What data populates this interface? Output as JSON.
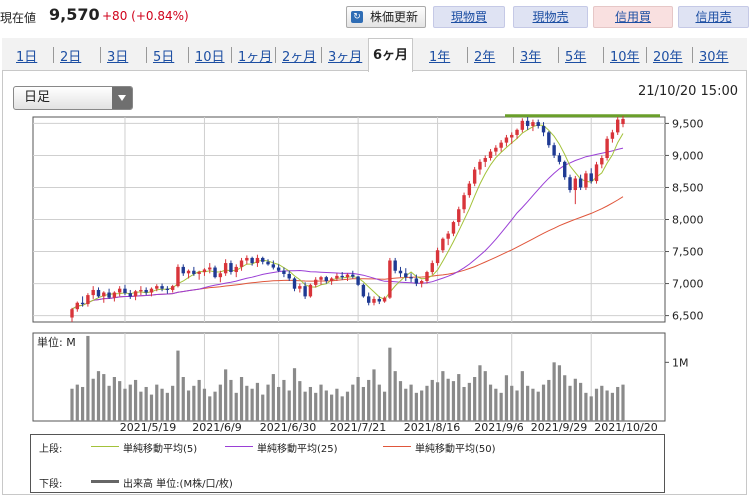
{
  "header": {
    "price_label": "現在値",
    "price_value": "9,570",
    "price_change": "+80 (+0.84%)",
    "refresh_label": "株価更新",
    "buy_spot_label": "現物買",
    "sell_spot_label": "現物売",
    "buy_margin_label": "信用買",
    "sell_margin_label": "信用売"
  },
  "period_tabs": [
    "1日",
    "2日",
    "3日",
    "5日",
    "10日",
    "1ヶ月",
    "2ヶ月",
    "3ヶ月",
    "6ヶ月",
    "1年",
    "2年",
    "3年",
    "5年",
    "10年",
    "20年",
    "30年"
  ],
  "active_tab": "6ヶ月",
  "candle_select": "日足",
  "datetime": "21/10/20 15:00",
  "legend": {
    "upper_label": "上段:",
    "ma5_label": "単純移動平均(5)",
    "ma25_label": "単純移動平均(25)",
    "ma50_label": "単純移動平均(50)",
    "lower_label": "下段:",
    "volume_label": "出来高 単位:(M株/口/枚)",
    "ma5_color": "#a3c23a",
    "ma25_color": "#9a3fd6",
    "ma50_color": "#e0563b"
  },
  "chart_data": {
    "type": "candlestick",
    "x_tick_labels": [
      "2021/5/19",
      "2021/6/9",
      "2021/6/30",
      "2021/7/21",
      "2021/8/16",
      "2021/9/6",
      "2021/9/29",
      "2021/10/20"
    ],
    "y_tick_labels": [
      "9,500",
      "9,000",
      "8,500",
      "8,000",
      "7,500",
      "7,000",
      "6,500"
    ],
    "ylim": [
      6400,
      9600
    ],
    "volume_unit_label": "単位: M",
    "volume_tick_label": "1M",
    "volume_ylim": [
      0,
      1.5
    ],
    "up_color": "#d8343a",
    "down_color": "#1f3a93",
    "volume_color": "#8a8a8a",
    "resistance_line": {
      "value": 9620,
      "color": "#6a9f2a"
    },
    "candles_ohlc": [
      [
        6470,
        6620,
        6400,
        6600
      ],
      [
        6600,
        6720,
        6560,
        6700
      ],
      [
        6700,
        6800,
        6640,
        6680
      ],
      [
        6680,
        6850,
        6640,
        6820
      ],
      [
        6820,
        6960,
        6760,
        6900
      ],
      [
        6900,
        6940,
        6780,
        6800
      ],
      [
        6800,
        6880,
        6700,
        6860
      ],
      [
        6860,
        6920,
        6760,
        6780
      ],
      [
        6780,
        6880,
        6720,
        6860
      ],
      [
        6860,
        6960,
        6800,
        6920
      ],
      [
        6920,
        6980,
        6820,
        6850
      ],
      [
        6850,
        6900,
        6760,
        6800
      ],
      [
        6800,
        6900,
        6740,
        6880
      ],
      [
        6880,
        6960,
        6820,
        6900
      ],
      [
        6900,
        6940,
        6820,
        6860
      ],
      [
        6860,
        6940,
        6800,
        6920
      ],
      [
        6920,
        6990,
        6880,
        6960
      ],
      [
        6960,
        7000,
        6880,
        6920
      ],
      [
        6920,
        6960,
        6840,
        6900
      ],
      [
        6900,
        6980,
        6860,
        6960
      ],
      [
        6960,
        7300,
        6940,
        7260
      ],
      [
        7260,
        7300,
        7120,
        7160
      ],
      [
        7160,
        7220,
        7080,
        7200
      ],
      [
        7200,
        7260,
        7120,
        7150
      ],
      [
        7150,
        7200,
        7060,
        7180
      ],
      [
        7180,
        7240,
        7120,
        7220
      ],
      [
        7220,
        7320,
        7160,
        7250
      ],
      [
        7250,
        7280,
        7080,
        7100
      ],
      [
        7100,
        7200,
        7020,
        7160
      ],
      [
        7160,
        7380,
        7120,
        7320
      ],
      [
        7320,
        7360,
        7140,
        7180
      ],
      [
        7180,
        7300,
        7100,
        7260
      ],
      [
        7260,
        7400,
        7200,
        7360
      ],
      [
        7360,
        7440,
        7300,
        7400
      ],
      [
        7400,
        7420,
        7280,
        7320
      ],
      [
        7320,
        7450,
        7260,
        7400
      ],
      [
        7400,
        7420,
        7300,
        7340
      ],
      [
        7340,
        7380,
        7280,
        7300
      ],
      [
        7300,
        7360,
        7220,
        7250
      ],
      [
        7250,
        7300,
        7180,
        7200
      ],
      [
        7200,
        7250,
        7100,
        7150
      ],
      [
        7150,
        7200,
        7040,
        7080
      ],
      [
        7080,
        7100,
        6880,
        6920
      ],
      [
        6920,
        7000,
        6860,
        6960
      ],
      [
        6960,
        7020,
        6760,
        6800
      ],
      [
        6800,
        7000,
        6780,
        6980
      ],
      [
        6980,
        7100,
        6940,
        7060
      ],
      [
        7060,
        7120,
        6980,
        7100
      ],
      [
        7100,
        7120,
        7000,
        7040
      ],
      [
        7040,
        7100,
        6980,
        7080
      ],
      [
        7080,
        7160,
        7040,
        7120
      ],
      [
        7120,
        7180,
        7060,
        7100
      ],
      [
        7100,
        7160,
        7040,
        7140
      ],
      [
        7140,
        7200,
        7080,
        7110
      ],
      [
        7110,
        7120,
        6960,
        6980
      ],
      [
        6980,
        7000,
        6780,
        6800
      ],
      [
        6800,
        6860,
        6660,
        6700
      ],
      [
        6700,
        6800,
        6660,
        6760
      ],
      [
        6760,
        6800,
        6680,
        6720
      ],
      [
        6720,
        6800,
        6700,
        6780
      ],
      [
        6780,
        7400,
        6760,
        7360
      ],
      [
        7360,
        7400,
        7160,
        7200
      ],
      [
        7200,
        7260,
        7100,
        7160
      ],
      [
        7160,
        7240,
        7040,
        7100
      ],
      [
        7100,
        7160,
        7020,
        7080
      ],
      [
        7080,
        7140,
        6960,
        7000
      ],
      [
        7000,
        7060,
        6940,
        7040
      ],
      [
        7040,
        7200,
        7000,
        7180
      ],
      [
        7180,
        7360,
        7140,
        7320
      ],
      [
        7320,
        7560,
        7280,
        7520
      ],
      [
        7520,
        7720,
        7480,
        7700
      ],
      [
        7700,
        7820,
        7600,
        7780
      ],
      [
        7780,
        7980,
        7740,
        7960
      ],
      [
        7960,
        8200,
        7900,
        8160
      ],
      [
        8160,
        8420,
        8100,
        8380
      ],
      [
        8380,
        8600,
        8340,
        8560
      ],
      [
        8560,
        8820,
        8520,
        8780
      ],
      [
        8780,
        8940,
        8700,
        8900
      ],
      [
        8900,
        9000,
        8820,
        8960
      ],
      [
        8960,
        9100,
        8920,
        9060
      ],
      [
        9060,
        9160,
        9000,
        9120
      ],
      [
        9120,
        9240,
        9060,
        9200
      ],
      [
        9200,
        9320,
        9140,
        9280
      ],
      [
        9280,
        9360,
        9180,
        9320
      ],
      [
        9320,
        9420,
        9260,
        9400
      ],
      [
        9400,
        9580,
        9360,
        9540
      ],
      [
        9540,
        9600,
        9400,
        9460
      ],
      [
        9460,
        9560,
        9380,
        9520
      ],
      [
        9520,
        9560,
        9420,
        9460
      ],
      [
        9460,
        9520,
        9300,
        9360
      ],
      [
        9360,
        9380,
        9120,
        9160
      ],
      [
        9160,
        9200,
        8960,
        9000
      ],
      [
        9000,
        9040,
        8860,
        8900
      ],
      [
        8900,
        8920,
        8620,
        8660
      ],
      [
        8660,
        8700,
        8420,
        8460
      ],
      [
        8460,
        8680,
        8240,
        8640
      ],
      [
        8640,
        8700,
        8460,
        8500
      ],
      [
        8500,
        8760,
        8460,
        8720
      ],
      [
        8720,
        8800,
        8560,
        8600
      ],
      [
        8600,
        8900,
        8560,
        8860
      ],
      [
        8860,
        9000,
        8800,
        8960
      ],
      [
        8960,
        9300,
        8920,
        9260
      ],
      [
        9260,
        9400,
        9200,
        9360
      ],
      [
        9360,
        9600,
        9320,
        9560
      ],
      [
        9490,
        9620,
        9440,
        9570
      ]
    ],
    "volume_values": [
      0.55,
      0.62,
      0.58,
      1.45,
      0.72,
      0.85,
      0.8,
      0.6,
      0.75,
      0.68,
      0.55,
      0.62,
      0.7,
      0.5,
      0.58,
      0.45,
      0.62,
      0.55,
      0.48,
      0.6,
      1.2,
      0.75,
      0.52,
      0.6,
      0.7,
      0.55,
      0.42,
      0.5,
      0.62,
      0.88,
      0.7,
      0.48,
      0.75,
      0.6,
      0.55,
      0.65,
      0.45,
      0.62,
      0.8,
      0.58,
      0.7,
      0.52,
      0.9,
      0.68,
      0.5,
      0.58,
      0.48,
      0.62,
      0.52,
      0.45,
      0.55,
      0.42,
      0.5,
      0.62,
      0.75,
      0.58,
      0.7,
      0.88,
      0.62,
      0.5,
      1.25,
      0.85,
      0.68,
      0.55,
      0.62,
      0.48,
      0.52,
      0.6,
      0.7,
      0.66,
      0.85,
      0.72,
      0.68,
      0.8,
      0.58,
      0.65,
      0.75,
      0.95,
      0.85,
      0.62,
      0.55,
      0.48,
      0.78,
      0.6,
      0.52,
      0.85,
      0.6,
      0.55,
      0.5,
      0.62,
      0.7,
      1.0,
      0.95,
      0.78,
      0.6,
      0.72,
      0.65,
      0.48,
      0.42,
      0.55,
      0.6,
      0.52,
      0.48,
      0.58,
      0.62
    ]
  }
}
